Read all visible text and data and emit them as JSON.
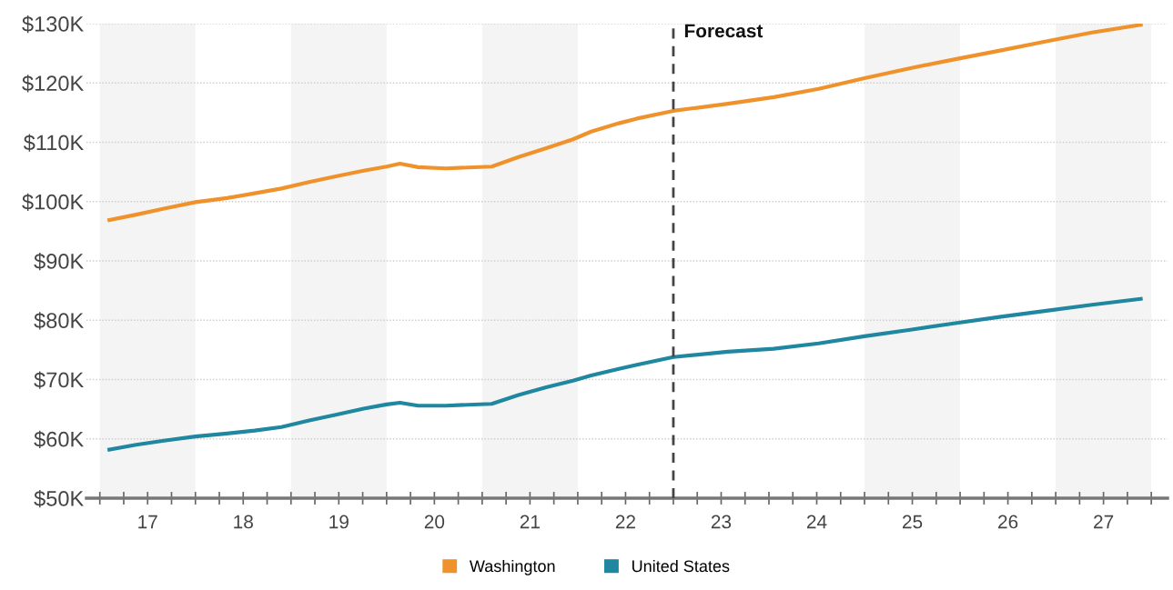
{
  "chart_data": {
    "type": "line",
    "x": [
      17.1,
      17.38,
      17.67,
      18.0,
      18.33,
      18.62,
      18.9,
      19.19,
      19.48,
      19.76,
      20.0,
      20.14,
      20.33,
      20.62,
      21.1,
      21.38,
      21.67,
      21.95,
      22.14,
      22.43,
      22.62,
      23.0,
      23.57,
      24.05,
      24.52,
      25.0,
      25.48,
      25.95,
      26.43,
      26.9,
      27.38,
      27.89
    ],
    "series": [
      {
        "name": "Washington",
        "color": "#f0922b",
        "values": [
          96.9,
          97.8,
          98.8,
          99.9,
          100.6,
          101.4,
          102.2,
          103.3,
          104.3,
          105.2,
          105.9,
          106.4,
          105.8,
          105.6,
          105.9,
          107.5,
          109.0,
          110.5,
          111.8,
          113.2,
          114.0,
          115.3,
          116.5,
          117.6,
          119.0,
          120.8,
          122.5,
          124.0,
          125.5,
          127.0,
          128.5,
          129.8
        ]
      },
      {
        "name": "United States",
        "color": "#1f87a0",
        "values": [
          58.2,
          59.0,
          59.7,
          60.4,
          60.9,
          61.4,
          62.0,
          63.1,
          64.1,
          65.1,
          65.8,
          66.1,
          65.6,
          65.6,
          65.9,
          67.4,
          68.7,
          69.8,
          70.7,
          71.8,
          72.5,
          73.8,
          74.7,
          75.2,
          76.1,
          77.3,
          78.4,
          79.5,
          80.6,
          81.6,
          82.6,
          83.6
        ]
      }
    ],
    "xlim": [
      16.86,
      28.17
    ],
    "xticks": [
      {
        "value": 17,
        "label": null
      },
      {
        "value": 17.25,
        "label": null
      },
      {
        "value": 17.5,
        "label": "17"
      },
      {
        "value": 17.75,
        "label": null
      },
      {
        "value": 18,
        "label": null
      },
      {
        "value": 18.25,
        "label": null
      },
      {
        "value": 18.5,
        "label": "18"
      },
      {
        "value": 18.75,
        "label": null
      },
      {
        "value": 19,
        "label": null
      },
      {
        "value": 19.25,
        "label": null
      },
      {
        "value": 19.5,
        "label": "19"
      },
      {
        "value": 19.75,
        "label": null
      },
      {
        "value": 20,
        "label": null
      },
      {
        "value": 20.25,
        "label": null
      },
      {
        "value": 20.5,
        "label": "20"
      },
      {
        "value": 20.75,
        "label": null
      },
      {
        "value": 21,
        "label": null
      },
      {
        "value": 21.25,
        "label": null
      },
      {
        "value": 21.5,
        "label": "21"
      },
      {
        "value": 21.75,
        "label": null
      },
      {
        "value": 22,
        "label": null
      },
      {
        "value": 22.25,
        "label": null
      },
      {
        "value": 22.5,
        "label": "22"
      },
      {
        "value": 22.75,
        "label": null
      },
      {
        "value": 23,
        "label": null
      },
      {
        "value": 23.25,
        "label": null
      },
      {
        "value": 23.5,
        "label": "23"
      },
      {
        "value": 23.75,
        "label": null
      },
      {
        "value": 24,
        "label": null
      },
      {
        "value": 24.25,
        "label": null
      },
      {
        "value": 24.5,
        "label": "24"
      },
      {
        "value": 24.75,
        "label": null
      },
      {
        "value": 25,
        "label": null
      },
      {
        "value": 25.25,
        "label": null
      },
      {
        "value": 25.5,
        "label": "25"
      },
      {
        "value": 25.75,
        "label": null
      },
      {
        "value": 26,
        "label": null
      },
      {
        "value": 26.25,
        "label": null
      },
      {
        "value": 26.5,
        "label": "26"
      },
      {
        "value": 26.75,
        "label": null
      },
      {
        "value": 27,
        "label": null
      },
      {
        "value": 27.25,
        "label": null
      },
      {
        "value": 27.5,
        "label": "27"
      },
      {
        "value": 27.75,
        "label": null
      },
      {
        "value": 28,
        "label": null
      }
    ],
    "ylim": [
      50,
      130
    ],
    "yticks": [
      {
        "value": 50,
        "label": "$50K"
      },
      {
        "value": 60,
        "label": "$60K"
      },
      {
        "value": 70,
        "label": "$70K"
      },
      {
        "value": 80,
        "label": "$80K"
      },
      {
        "value": 90,
        "label": "$90K"
      },
      {
        "value": 100,
        "label": "$100K"
      },
      {
        "value": 110,
        "label": "$110K"
      },
      {
        "value": 120,
        "label": "$120K"
      },
      {
        "value": 130,
        "label": "$130K"
      }
    ],
    "grid": "y",
    "legend": "bottom",
    "line_style": "solid",
    "marker": "none",
    "ref_lines": [
      {
        "axis": "x",
        "value": 23,
        "label": "Forecast",
        "color": "#444444",
        "line_style": "dashed"
      }
    ],
    "bands": [
      {
        "axis": "x",
        "from": 17,
        "to": 18,
        "color": "#f4f4f4"
      },
      {
        "axis": "x",
        "from": 19,
        "to": 20,
        "color": "#f4f4f4"
      },
      {
        "axis": "x",
        "from": 21,
        "to": 22,
        "color": "#f4f4f4"
      },
      {
        "axis": "x",
        "from": 25,
        "to": 26,
        "color": "#f4f4f4"
      },
      {
        "axis": "x",
        "from": 27,
        "to": 28,
        "color": "#f4f4f4"
      }
    ]
  }
}
